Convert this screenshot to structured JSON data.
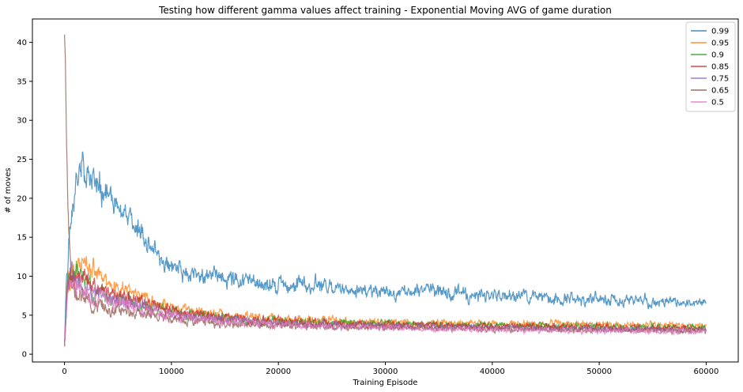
{
  "chart_data": {
    "type": "line",
    "title": "Testing how different gamma values affect training - Exponential Moving AVG of game duration",
    "xlabel": "Training Episode",
    "ylabel": "# of moves",
    "xlim": [
      -3000,
      63000
    ],
    "ylim": [
      -1,
      43
    ],
    "xticks": [
      0,
      10000,
      20000,
      30000,
      40000,
      50000,
      60000
    ],
    "yticks": [
      0,
      5,
      10,
      15,
      20,
      25,
      30,
      35,
      40
    ],
    "grid": false,
    "legend": "top-right",
    "series": [
      {
        "name": "0.99",
        "color": "#1f77b4",
        "x": [
          0,
          200,
          400,
          700,
          1000,
          1500,
          2000,
          3000,
          4000,
          5000,
          6000,
          7000,
          8000,
          9000,
          10000,
          12000,
          14000,
          16000,
          18000,
          20000,
          22000,
          25000,
          30000,
          35000,
          40000,
          45000,
          50000,
          55000,
          60000
        ],
        "values": [
          1,
          10,
          14,
          18,
          21,
          23,
          24,
          22,
          20,
          19,
          17.5,
          16,
          14,
          12,
          11,
          10,
          10,
          9.5,
          9,
          8.8,
          9,
          8.5,
          8,
          8,
          7.5,
          7.2,
          7,
          6.8,
          6.5
        ],
        "amp": [
          0,
          1.5,
          1.5,
          1.5,
          2.0,
          2.0,
          2.0,
          1.8,
          1.6,
          1.5,
          1.4,
          1.3,
          1.2,
          1.2,
          1.0,
          1.0,
          0.9,
          0.9,
          0.9,
          0.9,
          1.2,
          0.8,
          0.8,
          0.8,
          0.8,
          0.8,
          0.7,
          0.6,
          0.5
        ]
      },
      {
        "name": "0.95",
        "color": "#ff7f0e",
        "x": [
          0,
          300,
          700,
          1500,
          2500,
          4000,
          6000,
          8000,
          10000,
          15000,
          20000,
          30000,
          40000,
          50000,
          60000
        ],
        "values": [
          1,
          9,
          11,
          12,
          11,
          9,
          8,
          7,
          6,
          5,
          4.5,
          4,
          3.9,
          3.8,
          3.7
        ],
        "amp": [
          0,
          1.5,
          1.5,
          1.3,
          1.2,
          1.0,
          0.8,
          0.7,
          0.7,
          0.6,
          0.5,
          0.5,
          0.4,
          0.4,
          0.4
        ]
      },
      {
        "name": "0.9",
        "color": "#2ca02c",
        "x": [
          0,
          300,
          700,
          1500,
          2500,
          4000,
          6000,
          8000,
          10000,
          15000,
          20000,
          30000,
          40000,
          50000,
          60000
        ],
        "values": [
          1,
          9,
          10.5,
          10,
          8.5,
          7.5,
          7,
          6,
          5.5,
          4.6,
          4.2,
          3.9,
          3.7,
          3.5,
          3.4
        ],
        "amp": [
          0,
          1.4,
          1.4,
          1.3,
          1.1,
          0.9,
          0.8,
          0.7,
          0.6,
          0.5,
          0.5,
          0.4,
          0.4,
          0.4,
          0.3
        ]
      },
      {
        "name": "0.85",
        "color": "#d62728",
        "x": [
          0,
          300,
          700,
          1500,
          2500,
          4000,
          6000,
          8000,
          10000,
          15000,
          20000,
          30000,
          40000,
          50000,
          60000
        ],
        "values": [
          1,
          9,
          10.5,
          10,
          9,
          8,
          7,
          6.5,
          5.5,
          4.8,
          4.2,
          3.8,
          3.6,
          3.4,
          3.3
        ],
        "amp": [
          0,
          1.4,
          1.4,
          1.3,
          1.1,
          0.9,
          0.8,
          0.7,
          0.6,
          0.5,
          0.5,
          0.4,
          0.4,
          0.4,
          0.3
        ]
      },
      {
        "name": "0.75",
        "color": "#9467bd",
        "x": [
          0,
          300,
          700,
          1500,
          2500,
          4000,
          6000,
          8000,
          10000,
          15000,
          20000,
          30000,
          40000,
          50000,
          60000
        ],
        "values": [
          1,
          9,
          10,
          9,
          8,
          7,
          6.5,
          6,
          5,
          4.5,
          4,
          3.6,
          3.4,
          3.2,
          3.1
        ],
        "amp": [
          0,
          1.3,
          1.3,
          1.2,
          1.0,
          0.9,
          0.8,
          0.7,
          0.6,
          0.5,
          0.4,
          0.4,
          0.3,
          0.3,
          0.3
        ]
      },
      {
        "name": "0.65",
        "color": "#8c564b",
        "x": [
          0,
          80,
          160,
          260,
          400,
          700,
          1500,
          2500,
          4000,
          6000,
          8000,
          10000,
          15000,
          20000,
          30000,
          40000,
          50000,
          60000
        ],
        "values": [
          41,
          38,
          30,
          22,
          15,
          9,
          7.5,
          6.5,
          5.8,
          5.5,
          5,
          4.5,
          4,
          3.7,
          3.4,
          3.2,
          3.1,
          3.0
        ],
        "amp": [
          0,
          0.5,
          1.0,
          1.5,
          1.5,
          1.2,
          1.0,
          0.9,
          0.8,
          0.7,
          0.6,
          0.5,
          0.5,
          0.4,
          0.3,
          0.3,
          0.3,
          0.3
        ]
      },
      {
        "name": "0.5",
        "color": "#e377c2",
        "x": [
          0,
          300,
          700,
          1500,
          2500,
          4000,
          6000,
          8000,
          10000,
          15000,
          20000,
          30000,
          40000,
          50000,
          60000
        ],
        "values": [
          1,
          8.5,
          9.5,
          8.5,
          7.5,
          7,
          6.5,
          5.8,
          5,
          4.2,
          3.8,
          3.4,
          3.1,
          3.0,
          2.9
        ],
        "amp": [
          0,
          1.2,
          1.2,
          1.1,
          1.0,
          0.9,
          0.8,
          0.7,
          0.6,
          0.5,
          0.4,
          0.3,
          0.3,
          0.3,
          0.3
        ]
      }
    ]
  }
}
